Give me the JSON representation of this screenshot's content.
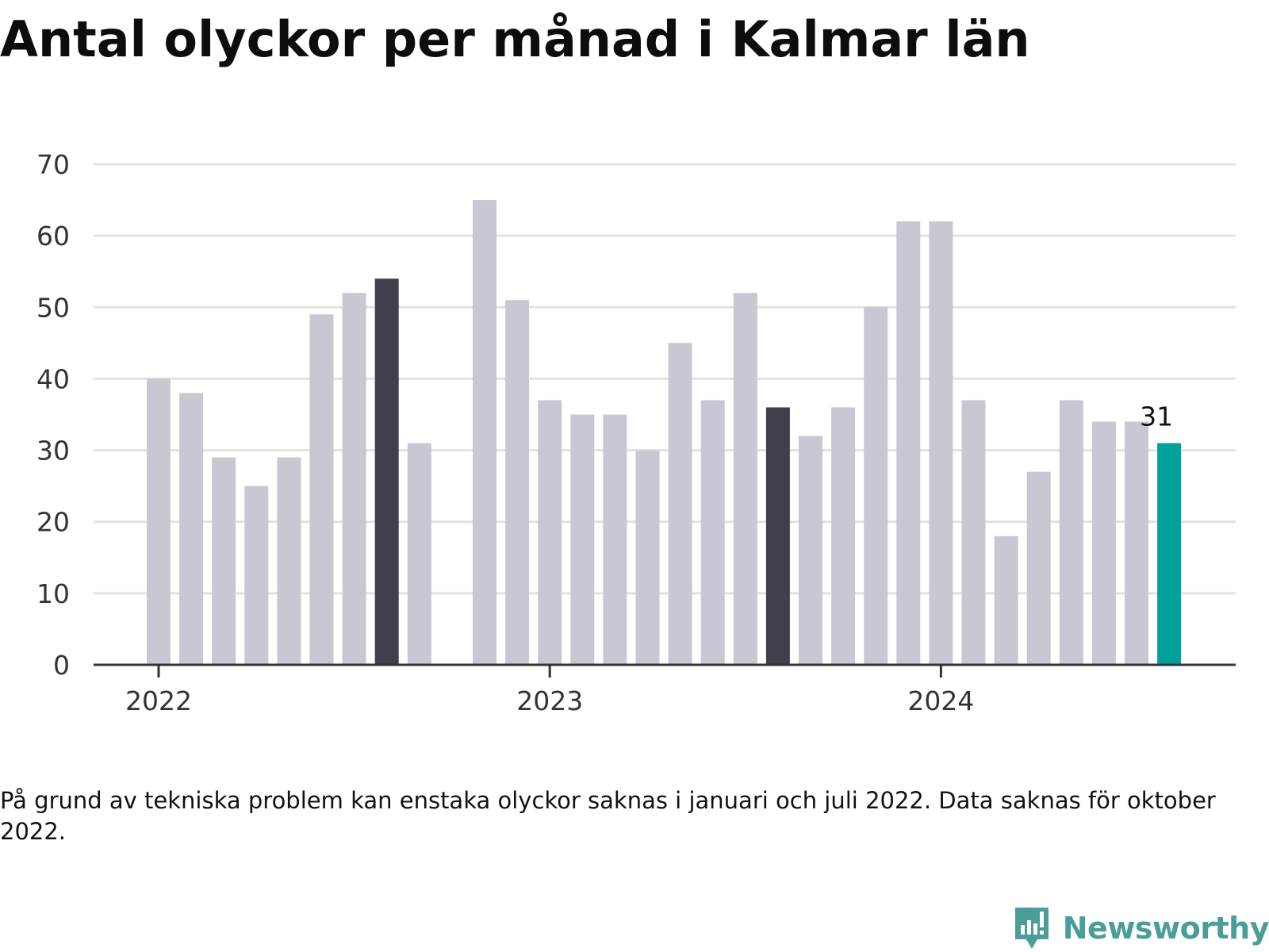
{
  "title": "Antal olyckor per månad i Kalmar län",
  "footnote": "På grund av tekniska problem kan enstaka olyckor saknas i januari och juli 2022. Data saknas för oktober 2022.",
  "brand": {
    "name": "Newsworthy",
    "icon": "newsworthy-logo-icon",
    "color": "#4a9d98"
  },
  "colors": {
    "default": "#c8c7d2",
    "highlight": "#413f4c",
    "latest": "#00a19a",
    "grid": "#e2e2e4",
    "axis": "#333333"
  },
  "chart_data": {
    "type": "bar",
    "title": "Antal olyckor per månad i Kalmar län",
    "xlabel": "",
    "ylabel": "",
    "ylim": [
      0,
      70
    ],
    "yticks": [
      0,
      10,
      20,
      30,
      40,
      50,
      60,
      70
    ],
    "grid": true,
    "x_tick_labels": [
      {
        "label": "2022",
        "category": "2022-01"
      },
      {
        "label": "2023",
        "category": "2023-01"
      },
      {
        "label": "2024",
        "category": "2024-01"
      }
    ],
    "categories": [
      "2022-01",
      "2022-02",
      "2022-03",
      "2022-04",
      "2022-05",
      "2022-06",
      "2022-07",
      "2022-08",
      "2022-09",
      "2022-10",
      "2022-11",
      "2022-12",
      "2023-01",
      "2023-02",
      "2023-03",
      "2023-04",
      "2023-05",
      "2023-06",
      "2023-07",
      "2023-08",
      "2023-09",
      "2023-10",
      "2023-11",
      "2023-12",
      "2024-01",
      "2024-02",
      "2024-03",
      "2024-04",
      "2024-05",
      "2024-06",
      "2024-07",
      "2024-08"
    ],
    "values": [
      40,
      38,
      29,
      25,
      29,
      49,
      52,
      54,
      31,
      null,
      65,
      51,
      37,
      35,
      35,
      30,
      45,
      37,
      52,
      36,
      32,
      36,
      50,
      62,
      62,
      37,
      18,
      27,
      37,
      34,
      34,
      31
    ],
    "highlighted": [
      "2022-08",
      "2023-08"
    ],
    "latest": "2024-08",
    "data_labels": [
      {
        "category": "2024-08",
        "text": "31"
      }
    ]
  }
}
